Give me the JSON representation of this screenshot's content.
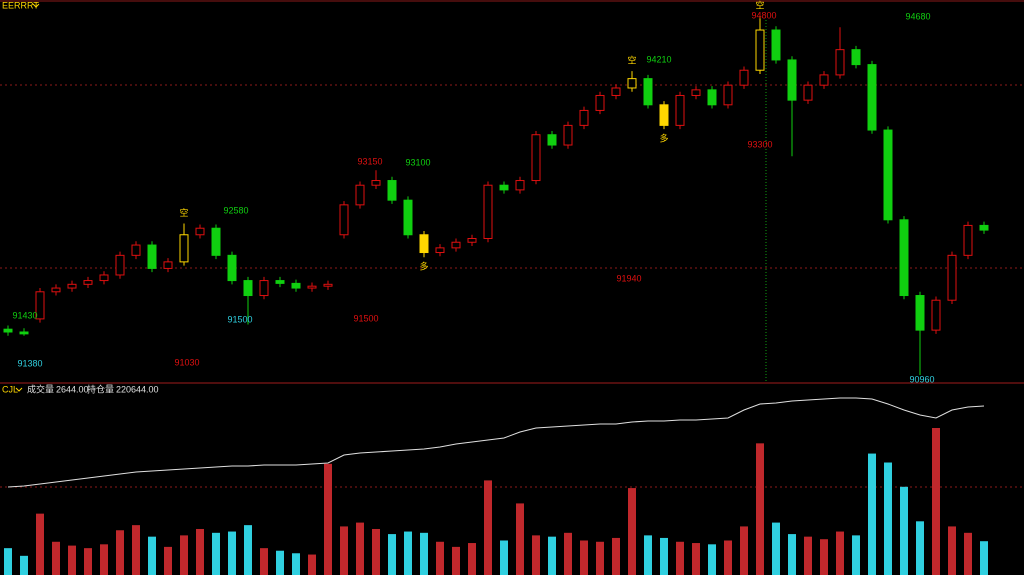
{
  "chart_data": {
    "type": "candlestick",
    "title": "EERRRT",
    "up_color": "#e01010",
    "down_color": "#10d010",
    "signal_color": "#ffd700",
    "open": [
      91450,
      91420,
      91560,
      91850,
      91890,
      91930,
      91970,
      92030,
      92240,
      92350,
      92100,
      92170,
      92460,
      92530,
      92240,
      91970,
      91810,
      91970,
      91940,
      91890,
      91910,
      92460,
      92780,
      92990,
      93040,
      92830,
      92460,
      92270,
      92320,
      92380,
      92420,
      92990,
      92940,
      93040,
      93530,
      93420,
      93630,
      93790,
      93950,
      94030,
      94130,
      93850,
      93630,
      93950,
      94010,
      93850,
      94060,
      94220,
      94650,
      94330,
      93900,
      94060,
      94170,
      94440,
      94280,
      93580,
      92620,
      91810,
      91440,
      91760,
      92240,
      92560
    ],
    "high": [
      91490,
      91460,
      91890,
      91930,
      91970,
      92010,
      92070,
      92280,
      92390,
      92390,
      92210,
      92580,
      92570,
      92570,
      92280,
      92010,
      92010,
      92010,
      91980,
      91950,
      91970,
      92820,
      93030,
      93150,
      93080,
      92870,
      92500,
      92360,
      92420,
      92460,
      93030,
      93030,
      93080,
      93570,
      93570,
      93670,
      93830,
      93990,
      94070,
      94210,
      94170,
      93890,
      93990,
      94050,
      94050,
      94100,
      94260,
      94800,
      94690,
      94370,
      94100,
      94210,
      94680,
      94480,
      94320,
      93620,
      92660,
      91850,
      91800,
      92280,
      92600,
      92600
    ],
    "low": [
      91380,
      91380,
      91520,
      91810,
      91850,
      91890,
      91930,
      91990,
      92200,
      92060,
      92060,
      92130,
      92420,
      92200,
      91930,
      91500,
      91770,
      91900,
      91850,
      91850,
      91870,
      92420,
      92740,
      92950,
      92790,
      92420,
      92220,
      92230,
      92280,
      92340,
      92380,
      92900,
      92900,
      93000,
      93380,
      93380,
      93590,
      93750,
      93910,
      93990,
      93810,
      93590,
      93590,
      93910,
      93810,
      93810,
      94020,
      94180,
      94290,
      93300,
      93860,
      94020,
      94130,
      94240,
      93540,
      92580,
      91770,
      90960,
      91400,
      91720,
      92200,
      92470
    ],
    "close": [
      91420,
      91400,
      91850,
      91890,
      91930,
      91970,
      92030,
      92240,
      92350,
      92100,
      92170,
      92460,
      92530,
      92240,
      91970,
      91810,
      91970,
      91940,
      91890,
      91910,
      91930,
      92780,
      92990,
      93040,
      92830,
      92460,
      92270,
      92320,
      92380,
      92420,
      92990,
      92940,
      93040,
      93530,
      93420,
      93630,
      93790,
      93950,
      94030,
      94130,
      93850,
      93630,
      93950,
      94010,
      93850,
      94060,
      94220,
      94650,
      94330,
      93900,
      94060,
      94170,
      94440,
      94280,
      93580,
      92620,
      91810,
      91440,
      91760,
      92240,
      92560,
      92510
    ],
    "annotations": [
      {
        "text": "91430",
        "color": "#10d010"
      },
      {
        "text": "91380",
        "color": "#30d0e0"
      },
      {
        "text": "91030",
        "color": "#e01010"
      },
      {
        "text": "92580",
        "color": "#10d010"
      },
      {
        "text": "91500",
        "color": "#30d0e0"
      },
      {
        "text": "93150",
        "color": "#e01010"
      },
      {
        "text": "93100",
        "color": "#10d010"
      },
      {
        "text": "91500",
        "color": "#e01010"
      },
      {
        "text": "91940",
        "color": "#e01010"
      },
      {
        "text": "94210",
        "color": "#10d010"
      },
      {
        "text": "93300",
        "color": "#e01010"
      },
      {
        "text": "94800",
        "color": "#e01010"
      },
      {
        "text": "94680",
        "color": "#10d010"
      },
      {
        "text": "90960",
        "color": "#30d0e0"
      }
    ],
    "signals": [
      "空",
      "多",
      "空",
      "多",
      "空"
    ],
    "indicator": {
      "name": "CJL",
      "volume_label": "成交量",
      "volume_text": "2644.00",
      "oi_label": "持仓量",
      "oi_text": "220644.00",
      "volume_up_color": "#c0282c",
      "volume_down_color": "#30d0e0",
      "oi_color": "#e0e0e0",
      "volume": [
        2100,
        1500,
        4800,
        2600,
        2300,
        2100,
        2400,
        3500,
        3900,
        3000,
        2200,
        3100,
        3600,
        3300,
        3400,
        3900,
        2100,
        1900,
        1700,
        1600,
        8700,
        3800,
        4100,
        3600,
        3200,
        3400,
        3300,
        2600,
        2200,
        2500,
        7400,
        2700,
        5600,
        3100,
        3000,
        3300,
        2700,
        2600,
        2900,
        6800,
        3100,
        2900,
        2600,
        2500,
        2400,
        2700,
        3800,
        10300,
        4100,
        3200,
        3000,
        2800,
        3400,
        3100,
        9500,
        8800,
        6900,
        4200,
        11500,
        3800,
        3300,
        2644
      ],
      "open_interest": [
        204444,
        204644,
        205044,
        205444,
        205844,
        206244,
        206644,
        207044,
        207444,
        207644,
        207844,
        208044,
        208244,
        208444,
        208644,
        208644,
        208844,
        208844,
        208844,
        209044,
        209244,
        210844,
        211244,
        211444,
        211644,
        211844,
        212044,
        212444,
        213044,
        213444,
        213844,
        214244,
        215444,
        216244,
        216444,
        216644,
        216844,
        217044,
        217044,
        217444,
        217644,
        217644,
        217844,
        217844,
        218044,
        218244,
        219844,
        221044,
        221244,
        221644,
        221844,
        222044,
        222244,
        222244,
        222044,
        221044,
        219844,
        218844,
        218244,
        219844,
        220444,
        220644
      ]
    }
  }
}
